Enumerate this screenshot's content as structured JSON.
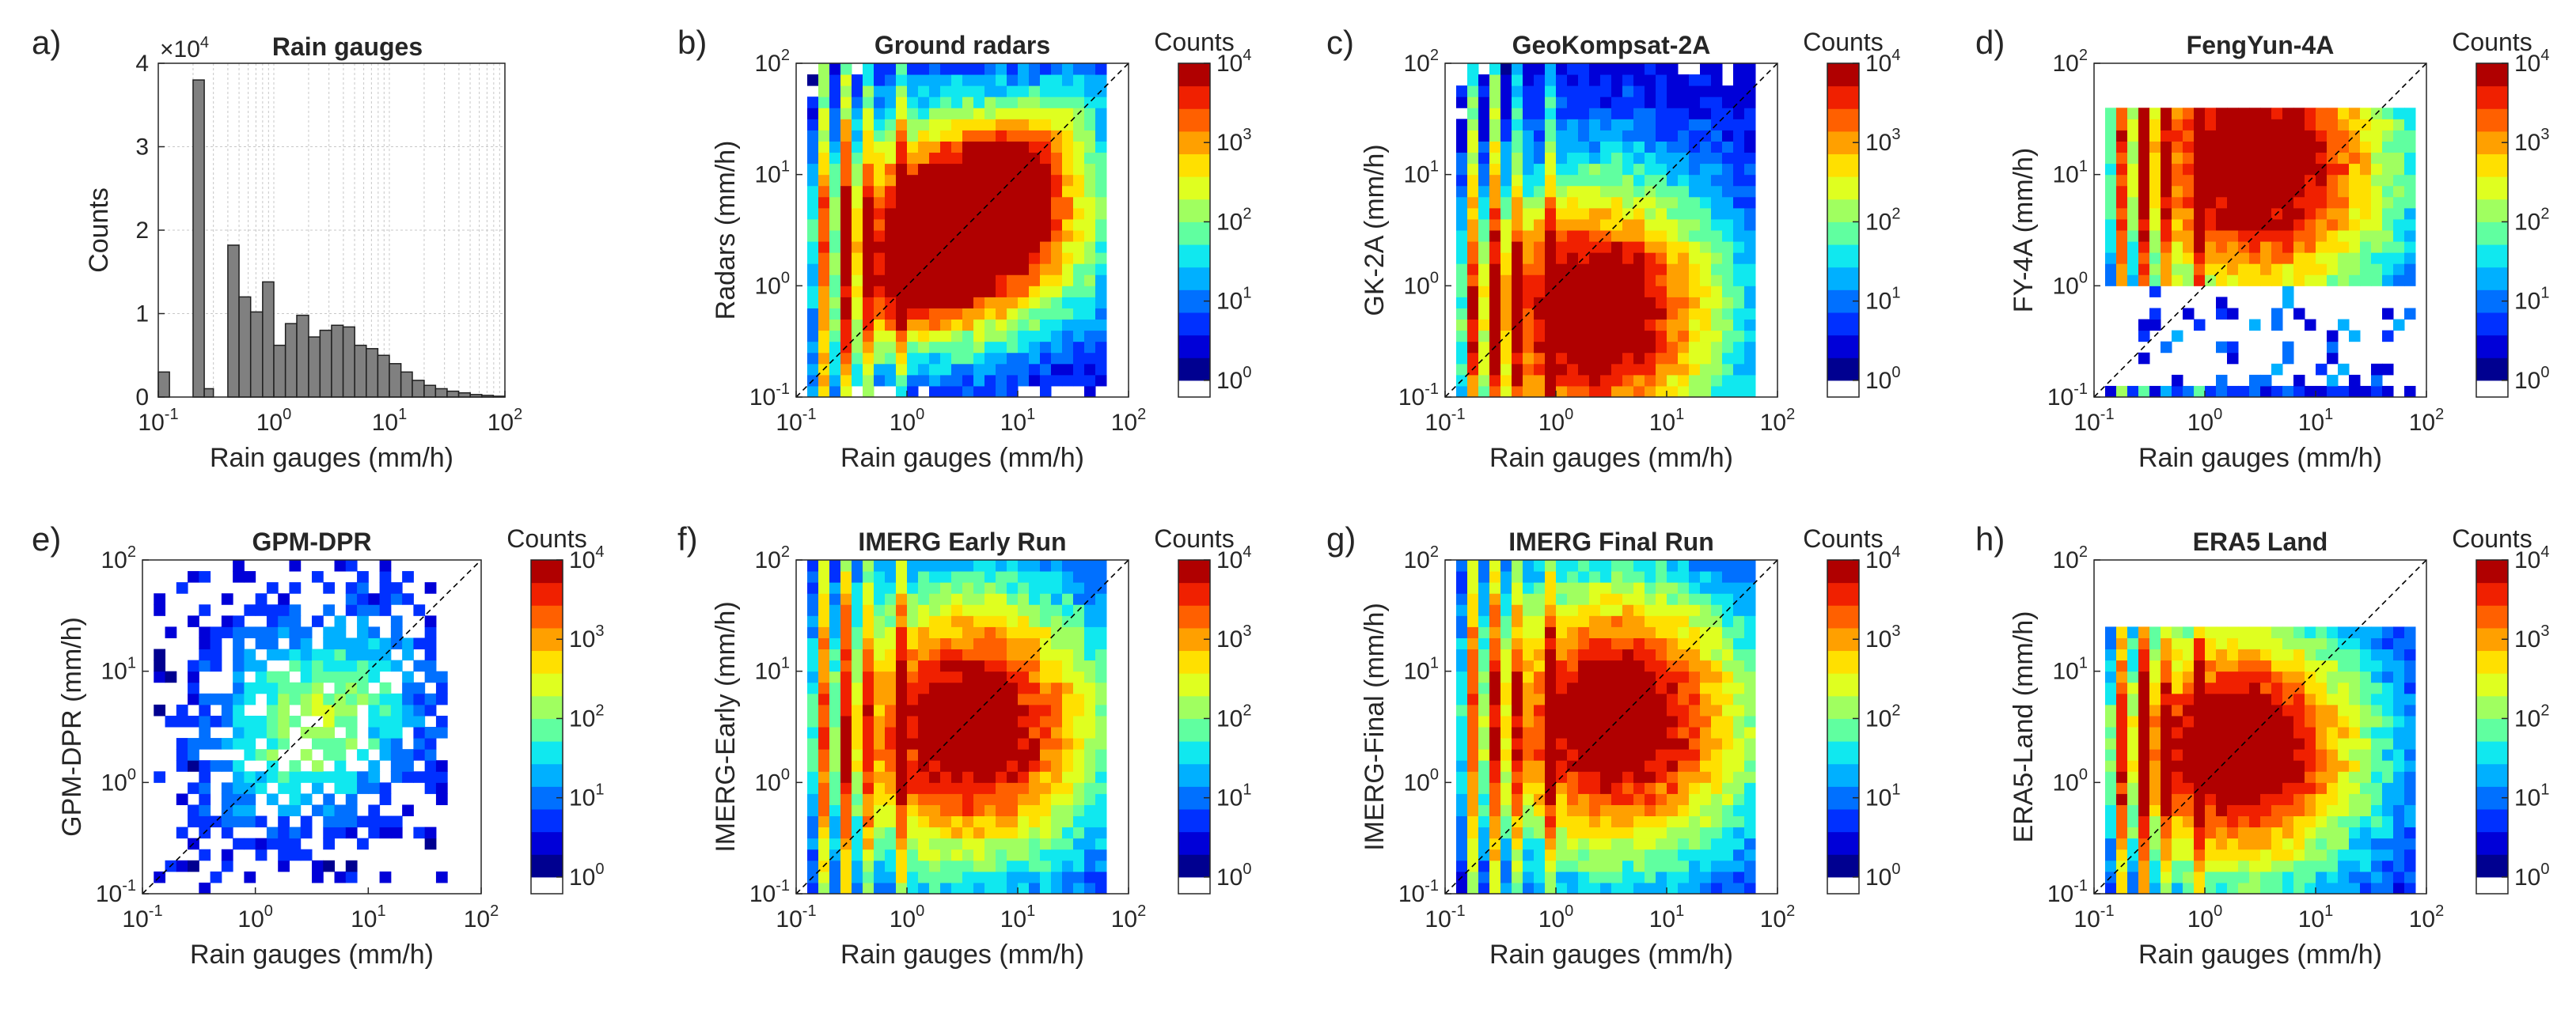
{
  "figure": {
    "colormap": [
      "#000090",
      "#0000d8",
      "#0030ff",
      "#0070ff",
      "#00b0ff",
      "#10e8ef",
      "#60ffa0",
      "#a0ff60",
      "#dfff20",
      "#ffe000",
      "#ffa000",
      "#ff6000",
      "#f02000",
      "#b00000"
    ],
    "zero_color": "#ffffff"
  },
  "chart_data": [
    {
      "type": "bar",
      "panel_label": "a)",
      "title": "Rain gauges",
      "xlabel": "Rain gauges (mm/h)",
      "ylabel": "Counts",
      "xscale": "log",
      "xlim": [
        0.1,
        100
      ],
      "ylim": [
        0,
        4
      ],
      "y_multiplier": "×10",
      "y_multiplier_exp": "4",
      "yticks": [
        "0",
        "1",
        "2",
        "3",
        "4"
      ],
      "grid": true,
      "bar_color": "#808080",
      "bins_low": [
        0.1,
        0.2,
        0.25,
        0.4,
        0.5,
        0.63,
        0.8,
        1.0,
        1.26,
        1.58,
        2.0,
        2.51,
        3.16,
        3.98,
        5.01,
        6.31,
        7.94,
        10.0,
        12.6,
        15.8,
        20.0,
        25.1,
        31.6,
        39.8,
        50.1,
        63.1,
        79.4
      ],
      "bins_high": [
        0.125,
        0.25,
        0.3,
        0.5,
        0.63,
        0.8,
        1.0,
        1.26,
        1.58,
        2.0,
        2.51,
        3.16,
        3.98,
        5.01,
        6.31,
        7.94,
        10.0,
        12.6,
        15.8,
        20.0,
        25.1,
        31.6,
        39.8,
        50.1,
        63.1,
        79.4,
        100.0
      ],
      "values": [
        0.3,
        3.8,
        0.1,
        1.82,
        1.2,
        1.02,
        1.38,
        0.62,
        0.88,
        0.98,
        0.72,
        0.8,
        0.86,
        0.84,
        0.62,
        0.58,
        0.5,
        0.4,
        0.3,
        0.2,
        0.14,
        0.1,
        0.07,
        0.05,
        0.03,
        0.02,
        0.01
      ]
    },
    {
      "type": "heatmap",
      "panel_label": "b)",
      "title": "Ground radars",
      "xlabel": "Rain gauges (mm/h)",
      "ylabel": "Radars (mm/h)",
      "xscale": "log",
      "yscale": "log",
      "xlim": [
        0.1,
        100
      ],
      "ylim": [
        0.1,
        100
      ],
      "colorbar_title": "Counts",
      "colorbar_range": [
        1,
        10000
      ],
      "y_rows": "low",
      "row_min": 0,
      "blob_x": 0.55,
      "blob_y": 0.55,
      "blob_r": 0.85,
      "blob_peak": 3.6,
      "spread": 0.6,
      "diag_w": 0.45,
      "base": 1.1,
      "diag_gain": 1.6,
      "col_range": [
        0.12,
        70
      ],
      "cut": 0.45,
      "seed": 7
    },
    {
      "type": "heatmap",
      "panel_label": "c)",
      "title": "GeoKompsat-2A",
      "xlabel": "Rain gauges (mm/h)",
      "ylabel": "GK-2A (mm/h)",
      "xscale": "log",
      "yscale": "log",
      "xlim": [
        0.1,
        100
      ],
      "ylim": [
        0.1,
        100
      ],
      "colorbar_title": "Counts",
      "colorbar_range": [
        1,
        10000
      ],
      "y_rows": "all",
      "row_min": 0,
      "blob_x": 0.35,
      "blob_y": -0.25,
      "blob_r": 0.8,
      "blob_peak": 3.0,
      "spread": 1.4,
      "diag_w": 0.0,
      "base": 1.5,
      "diag_gain": 0.0,
      "col_range": [
        0.12,
        70
      ],
      "cut": 0.3,
      "seed": 13
    },
    {
      "type": "heatmap",
      "panel_label": "d)",
      "title": "FengYun-4A",
      "xlabel": "Rain gauges (mm/h)",
      "ylabel": "FY-4A (mm/h)",
      "xscale": "log",
      "yscale": "log",
      "xlim": [
        0.1,
        100
      ],
      "ylim": [
        0.1,
        100
      ],
      "colorbar_title": "Counts",
      "colorbar_range": [
        1,
        10000
      ],
      "y_rows": "split",
      "row_min": 0,
      "blob_x": 0.5,
      "blob_y": 1.1,
      "blob_r": 0.9,
      "blob_peak": 2.9,
      "spread": 1.5,
      "diag_w": 0.0,
      "base": 1.5,
      "diag_gain": 0.0,
      "col_range": [
        0.12,
        80
      ],
      "cut": 0.3,
      "seed": 21
    },
    {
      "type": "heatmap",
      "panel_label": "e)",
      "title": "GPM-DPR",
      "xlabel": "Rain gauges (mm/h)",
      "ylabel": "GPM-DPR (mm/h)",
      "xscale": "log",
      "yscale": "log",
      "xlim": [
        0.1,
        100
      ],
      "ylim": [
        0.1,
        100
      ],
      "colorbar_title": "Counts",
      "colorbar_range": [
        1,
        10000
      ],
      "y_rows": "sparse",
      "row_min": 0,
      "blob_x": 0.6,
      "blob_y": 0.6,
      "blob_r": 0.7,
      "blob_peak": 1.3,
      "spread": 0.9,
      "diag_w": 0.6,
      "base": 0.4,
      "diag_gain": 0.5,
      "col_range": [
        0.12,
        50
      ],
      "cut": 0.55,
      "seed": 33
    },
    {
      "type": "heatmap",
      "panel_label": "f)",
      "title": "IMERG Early Run",
      "xlabel": "Rain gauges (mm/h)",
      "ylabel": "IMERG-Early (mm/h)",
      "xscale": "log",
      "yscale": "log",
      "xlim": [
        0.1,
        100
      ],
      "ylim": [
        0.1,
        100
      ],
      "colorbar_title": "Counts",
      "colorbar_range": [
        1,
        10000
      ],
      "y_rows": "all",
      "row_min": 0,
      "blob_x": 0.6,
      "blob_y": 0.5,
      "blob_r": 0.9,
      "blob_peak": 2.8,
      "spread": 1.3,
      "diag_w": 0.0,
      "base": 1.5,
      "diag_gain": 0.0,
      "col_range": [
        0.12,
        70
      ],
      "cut": 0.3,
      "seed": 41
    },
    {
      "type": "heatmap",
      "panel_label": "g)",
      "title": "IMERG Final Run",
      "xlabel": "Rain gauges (mm/h)",
      "ylabel": "IMERG-Final (mm/h)",
      "xscale": "log",
      "yscale": "log",
      "xlim": [
        0.1,
        100
      ],
      "ylim": [
        0.1,
        100
      ],
      "colorbar_title": "Counts",
      "colorbar_range": [
        1,
        10000
      ],
      "y_rows": "all",
      "row_min": 0,
      "blob_x": 0.6,
      "blob_y": 0.55,
      "blob_r": 0.9,
      "blob_peak": 2.9,
      "spread": 1.3,
      "diag_w": 0.0,
      "base": 1.5,
      "diag_gain": 0.0,
      "col_range": [
        0.12,
        70
      ],
      "cut": 0.3,
      "seed": 53
    },
    {
      "type": "heatmap",
      "panel_label": "h)",
      "title": "ERA5 Land",
      "xlabel": "Rain gauges (mm/h)",
      "ylabel": "ERA5-Land (mm/h)",
      "xscale": "log",
      "yscale": "log",
      "xlim": [
        0.1,
        100
      ],
      "ylim": [
        0.1,
        100
      ],
      "colorbar_title": "Counts",
      "colorbar_range": [
        1,
        10000
      ],
      "y_rows": "upto30",
      "row_min": 0,
      "blob_x": 0.3,
      "blob_y": 0.3,
      "blob_r": 0.8,
      "blob_peak": 3.0,
      "spread": 1.3,
      "diag_w": 0.0,
      "base": 1.5,
      "diag_gain": 0.0,
      "col_range": [
        0.12,
        80
      ],
      "cut": 0.3,
      "seed": 67
    }
  ]
}
